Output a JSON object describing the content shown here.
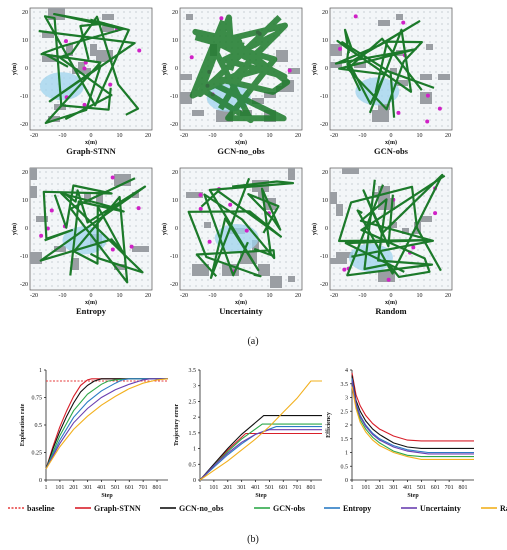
{
  "caption_a": "(a)",
  "caption_b": "(b)",
  "maps": {
    "xlabel": "x(m)",
    "ylabel": "y(m)",
    "xticks": [
      "-20",
      "-10",
      "0",
      "10",
      "20"
    ],
    "yticks": [
      "20",
      "10",
      "0",
      "-10",
      "-20"
    ],
    "panels": [
      {
        "title": "Graph-STNN"
      },
      {
        "title": "GCN-no_obs"
      },
      {
        "title": "GCN-obs"
      },
      {
        "title": "Entropy"
      },
      {
        "title": "Uncertainty"
      },
      {
        "title": "Random"
      }
    ]
  },
  "legend": [
    {
      "name": "baseline",
      "color": "#e53b3b",
      "dash": true
    },
    {
      "name": "Graph-STNN",
      "color": "#d81f2a",
      "dash": false
    },
    {
      "name": "GCN-no_obs",
      "color": "#111111",
      "dash": false
    },
    {
      "name": "GCN-obs",
      "color": "#2ea84a",
      "dash": false
    },
    {
      "name": "Entropy",
      "color": "#2b7bc4",
      "dash": false
    },
    {
      "name": "Uncertainty",
      "color": "#6a3fb0",
      "dash": false
    },
    {
      "name": "Random",
      "color": "#f2b01e",
      "dash": false
    }
  ],
  "chart_data": [
    {
      "type": "line",
      "xlabel": "Step",
      "ylabel": "Exploration rate",
      "xticks": [
        "1",
        "101",
        "201",
        "301",
        "401",
        "501",
        "601",
        "701",
        "801"
      ],
      "yticks": [
        "0",
        "0.25",
        "0.5",
        "0.75",
        "1"
      ],
      "xlim": [
        1,
        880
      ],
      "ylim": [
        0,
        1
      ],
      "series": [
        {
          "name": "baseline",
          "x": [
            1,
            880
          ],
          "y": [
            0.9,
            0.9
          ]
        },
        {
          "name": "Graph-STNN",
          "x": [
            1,
            50,
            100,
            150,
            200,
            250,
            300,
            330,
            400,
            500,
            880
          ],
          "y": [
            0.1,
            0.3,
            0.48,
            0.63,
            0.76,
            0.86,
            0.91,
            0.92,
            0.92,
            0.92,
            0.92
          ]
        },
        {
          "name": "GCN-no_obs",
          "x": [
            1,
            50,
            100,
            150,
            200,
            250,
            300,
            350,
            400,
            500,
            880
          ],
          "y": [
            0.1,
            0.28,
            0.44,
            0.58,
            0.7,
            0.8,
            0.86,
            0.9,
            0.92,
            0.92,
            0.92
          ]
        },
        {
          "name": "GCN-obs",
          "x": [
            1,
            100,
            200,
            300,
            400,
            450,
            500,
            600,
            880
          ],
          "y": [
            0.1,
            0.4,
            0.63,
            0.78,
            0.87,
            0.9,
            0.91,
            0.92,
            0.92
          ]
        },
        {
          "name": "Entropy",
          "x": [
            1,
            100,
            200,
            300,
            400,
            500,
            550,
            600,
            880
          ],
          "y": [
            0.1,
            0.36,
            0.57,
            0.71,
            0.81,
            0.88,
            0.91,
            0.92,
            0.92
          ]
        },
        {
          "name": "Uncertainty",
          "x": [
            1,
            100,
            200,
            300,
            400,
            500,
            600,
            700,
            750,
            880
          ],
          "y": [
            0.1,
            0.33,
            0.52,
            0.65,
            0.75,
            0.82,
            0.87,
            0.91,
            0.92,
            0.92
          ]
        },
        {
          "name": "Random",
          "x": [
            1,
            100,
            200,
            300,
            400,
            500,
            600,
            700,
            800,
            880
          ],
          "y": [
            0.1,
            0.3,
            0.46,
            0.58,
            0.68,
            0.76,
            0.83,
            0.88,
            0.91,
            0.92
          ]
        }
      ]
    },
    {
      "type": "line",
      "xlabel": "Step",
      "ylabel": "Trajectory error",
      "xticks": [
        "1",
        "101",
        "201",
        "301",
        "401",
        "501",
        "601",
        "701",
        "801"
      ],
      "yticks": [
        "0",
        "0.5",
        "1",
        "1.5",
        "2",
        "2.5",
        "3",
        "3.5"
      ],
      "xlim": [
        1,
        880
      ],
      "ylim": [
        0,
        3.5
      ],
      "series": [
        {
          "name": "Graph-STNN",
          "x": [
            1,
            100,
            200,
            330,
            880
          ],
          "y": [
            0,
            0.45,
            0.95,
            1.48,
            1.48
          ]
        },
        {
          "name": "GCN-no_obs",
          "x": [
            1,
            100,
            200,
            300,
            460,
            880
          ],
          "y": [
            0,
            0.5,
            1.0,
            1.45,
            2.05,
            2.05
          ]
        },
        {
          "name": "GCN-obs",
          "x": [
            1,
            100,
            200,
            300,
            450,
            880
          ],
          "y": [
            0,
            0.45,
            0.9,
            1.3,
            1.78,
            1.78
          ]
        },
        {
          "name": "Entropy",
          "x": [
            1,
            100,
            200,
            300,
            400,
            550,
            880
          ],
          "y": [
            0,
            0.4,
            0.8,
            1.15,
            1.45,
            1.7,
            1.7
          ]
        },
        {
          "name": "Uncertainty",
          "x": [
            1,
            100,
            200,
            300,
            400,
            500,
            880
          ],
          "y": [
            0,
            0.45,
            0.85,
            1.2,
            1.45,
            1.6,
            1.6
          ]
        },
        {
          "name": "Random",
          "x": [
            1,
            100,
            200,
            300,
            400,
            500,
            600,
            700,
            800,
            880
          ],
          "y": [
            0,
            0.3,
            0.6,
            0.95,
            1.3,
            1.7,
            2.15,
            2.6,
            3.15,
            3.15
          ]
        }
      ]
    },
    {
      "type": "line",
      "xlabel": "Step",
      "ylabel": "Efficiency",
      "xticks": [
        "1",
        "101",
        "201",
        "301",
        "401",
        "501",
        "601",
        "701",
        "801"
      ],
      "yticks": [
        "0",
        "0.5",
        "1",
        "1.5",
        "2",
        "2.5",
        "3",
        "3.5",
        "4"
      ],
      "xlim": [
        1,
        880
      ],
      "ylim": [
        0,
        4
      ],
      "series": [
        {
          "name": "Graph-STNN",
          "x": [
            1,
            30,
            60,
            100,
            150,
            200,
            300,
            400,
            500,
            880
          ],
          "y": [
            3.9,
            3.1,
            2.7,
            2.35,
            2.05,
            1.85,
            1.6,
            1.45,
            1.42,
            1.42
          ]
        },
        {
          "name": "GCN-no_obs",
          "x": [
            1,
            30,
            60,
            100,
            150,
            200,
            300,
            400,
            500,
            880
          ],
          "y": [
            3.8,
            2.9,
            2.5,
            2.15,
            1.85,
            1.65,
            1.35,
            1.2,
            1.15,
            1.15
          ]
        },
        {
          "name": "GCN-obs",
          "x": [
            1,
            30,
            60,
            100,
            150,
            200,
            300,
            400,
            500,
            600,
            880
          ],
          "y": [
            3.6,
            2.7,
            2.2,
            1.85,
            1.55,
            1.35,
            1.05,
            0.9,
            0.85,
            0.85,
            0.85
          ]
        },
        {
          "name": "Entropy",
          "x": [
            1,
            30,
            60,
            100,
            150,
            200,
            300,
            400,
            550,
            880
          ],
          "y": [
            3.7,
            2.8,
            2.35,
            2.0,
            1.7,
            1.5,
            1.25,
            1.1,
            1.0,
            1.0
          ]
        },
        {
          "name": "Uncertainty",
          "x": [
            1,
            30,
            60,
            100,
            150,
            200,
            300,
            400,
            550,
            880
          ],
          "y": [
            3.6,
            2.75,
            2.3,
            1.95,
            1.65,
            1.45,
            1.2,
            1.05,
            0.95,
            0.95
          ]
        },
        {
          "name": "Random",
          "x": [
            1,
            30,
            60,
            100,
            150,
            200,
            300,
            400,
            500,
            880
          ],
          "y": [
            3.4,
            2.6,
            2.1,
            1.75,
            1.45,
            1.25,
            1.0,
            0.85,
            0.75,
            0.75
          ]
        }
      ]
    }
  ]
}
